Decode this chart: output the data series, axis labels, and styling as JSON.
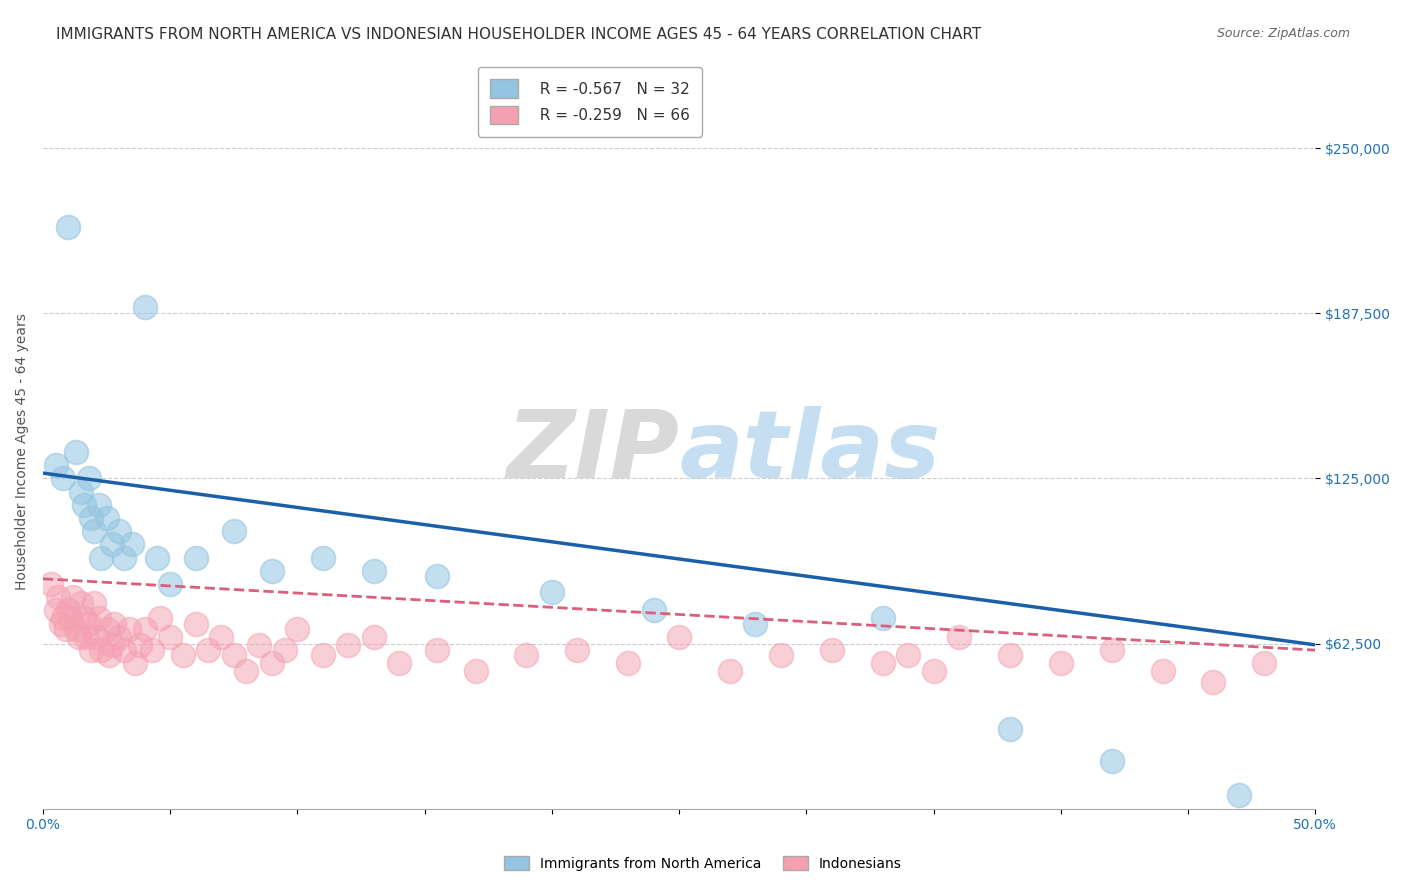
{
  "title": "IMMIGRANTS FROM NORTH AMERICA VS INDONESIAN HOUSEHOLDER INCOME AGES 45 - 64 YEARS CORRELATION CHART",
  "source": "Source: ZipAtlas.com",
  "ylabel": "Householder Income Ages 45 - 64 years",
  "xlim": [
    0.0,
    0.5
  ],
  "ylim": [
    0,
    270000
  ],
  "yticks": [
    62500,
    125000,
    187500,
    250000
  ],
  "ytick_labels": [
    "$62,500",
    "$125,000",
    "$187,500",
    "$250,000"
  ],
  "xticks": [
    0.0,
    0.05,
    0.1,
    0.15,
    0.2,
    0.25,
    0.3,
    0.35,
    0.4,
    0.45,
    0.5
  ],
  "xtick_labels": [
    "0.0%",
    "",
    "",
    "",
    "",
    "",
    "",
    "",
    "",
    "",
    "50.0%"
  ],
  "blue_color": "#93c4e0",
  "pink_color": "#f4a0b0",
  "blue_line_color": "#1a5fa8",
  "pink_line_color": "#d95f7a",
  "legend_R_blue": "R = -0.567",
  "legend_N_blue": "N = 32",
  "legend_R_pink": "R = -0.259",
  "legend_N_pink": "N = 66",
  "watermark_zip": "ZIP",
  "watermark_atlas": "atlas",
  "blue_scatter_x": [
    0.005,
    0.008,
    0.01,
    0.013,
    0.015,
    0.016,
    0.018,
    0.019,
    0.02,
    0.022,
    0.023,
    0.025,
    0.027,
    0.03,
    0.032,
    0.035,
    0.04,
    0.045,
    0.05,
    0.06,
    0.075,
    0.09,
    0.11,
    0.13,
    0.155,
    0.2,
    0.24,
    0.28,
    0.33,
    0.38,
    0.42,
    0.47
  ],
  "blue_scatter_y": [
    130000,
    125000,
    220000,
    135000,
    120000,
    115000,
    125000,
    110000,
    105000,
    115000,
    95000,
    110000,
    100000,
    105000,
    95000,
    100000,
    190000,
    95000,
    85000,
    95000,
    105000,
    90000,
    95000,
    90000,
    88000,
    82000,
    75000,
    70000,
    72000,
    30000,
    18000,
    5000
  ],
  "pink_scatter_x": [
    0.003,
    0.005,
    0.006,
    0.007,
    0.008,
    0.009,
    0.01,
    0.011,
    0.012,
    0.013,
    0.014,
    0.015,
    0.016,
    0.017,
    0.018,
    0.019,
    0.02,
    0.021,
    0.022,
    0.023,
    0.025,
    0.026,
    0.027,
    0.028,
    0.03,
    0.032,
    0.034,
    0.036,
    0.038,
    0.04,
    0.043,
    0.046,
    0.05,
    0.055,
    0.06,
    0.065,
    0.07,
    0.075,
    0.08,
    0.085,
    0.09,
    0.095,
    0.1,
    0.11,
    0.12,
    0.13,
    0.14,
    0.155,
    0.17,
    0.19,
    0.21,
    0.23,
    0.25,
    0.27,
    0.29,
    0.31,
    0.33,
    0.34,
    0.35,
    0.36,
    0.38,
    0.4,
    0.42,
    0.44,
    0.46,
    0.48
  ],
  "pink_scatter_y": [
    85000,
    75000,
    80000,
    70000,
    72000,
    68000,
    75000,
    72000,
    80000,
    68000,
    65000,
    78000,
    72000,
    65000,
    70000,
    60000,
    78000,
    65000,
    72000,
    60000,
    68000,
    58000,
    62000,
    70000,
    65000,
    60000,
    68000,
    55000,
    62000,
    68000,
    60000,
    72000,
    65000,
    58000,
    70000,
    60000,
    65000,
    58000,
    52000,
    62000,
    55000,
    60000,
    68000,
    58000,
    62000,
    65000,
    55000,
    60000,
    52000,
    58000,
    60000,
    55000,
    65000,
    52000,
    58000,
    60000,
    55000,
    58000,
    52000,
    65000,
    58000,
    55000,
    60000,
    52000,
    48000,
    55000
  ],
  "blue_trendline_x": [
    0.0,
    0.5
  ],
  "blue_trendline_y": [
    127000,
    62000
  ],
  "pink_trendline_x": [
    0.0,
    0.5
  ],
  "pink_trendline_y": [
    87000,
    60000
  ],
  "title_fontsize": 11,
  "axis_label_fontsize": 10,
  "tick_fontsize": 10,
  "legend_fontsize": 11,
  "background_color": "#ffffff",
  "grid_color": "#cccccc"
}
